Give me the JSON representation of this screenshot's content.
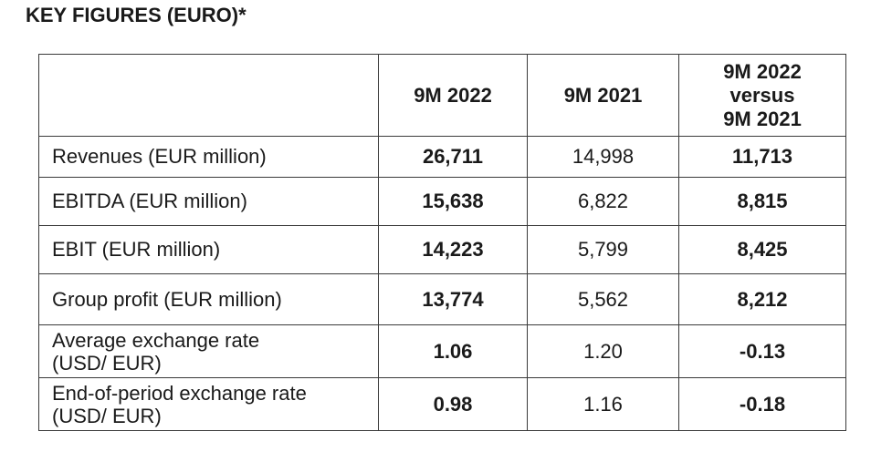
{
  "title": "KEY FIGURES (EURO)*",
  "table": {
    "headers": {
      "blank": "",
      "col1": "9M 2022",
      "col2": "9M 2021",
      "col3_line1": "9M 2022",
      "col3_line2": "versus",
      "col3_line3": "9M 2021"
    },
    "rows": [
      {
        "label": "Revenues (EUR million)",
        "v2022": "26,711",
        "v2021": "14,998",
        "diff": "11,713"
      },
      {
        "label": "EBITDA (EUR million)",
        "v2022": "15,638",
        "v2021": "6,822",
        "diff": "8,815"
      },
      {
        "label": "EBIT (EUR million)",
        "v2022": "14,223",
        "v2021": "5,799",
        "diff": "8,425"
      },
      {
        "label": "Group profit (EUR million)",
        "v2022": "13,774",
        "v2021": "5,562",
        "diff": "8,212"
      },
      {
        "label_line1": "Average exchange rate",
        "label_line2": "(USD/ EUR)",
        "v2022": "1.06",
        "v2021": "1.20",
        "diff": "-0.13"
      },
      {
        "label_line1": "End-of-period exchange rate",
        "label_line2": "(USD/ EUR)",
        "v2022": "0.98",
        "v2021": "1.16",
        "diff": "-0.18"
      }
    ]
  }
}
